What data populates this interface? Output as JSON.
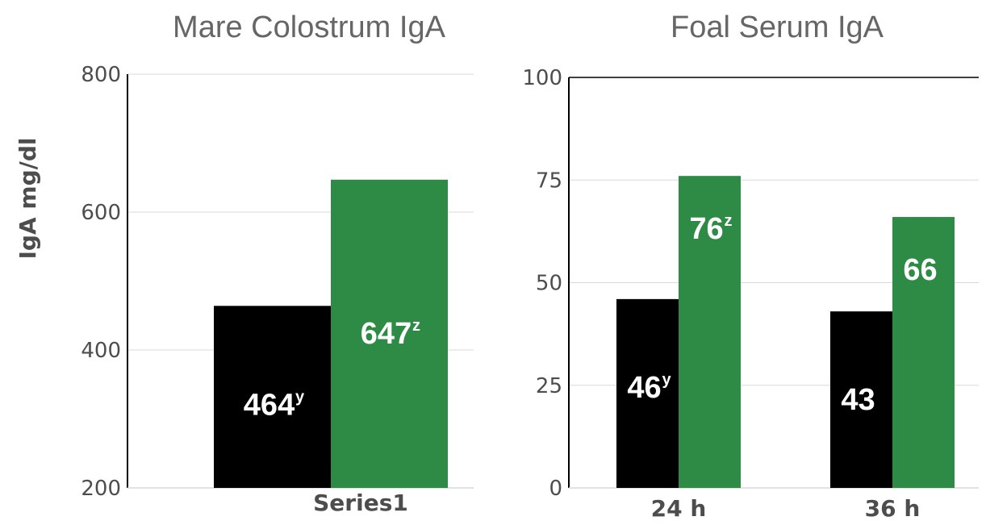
{
  "chart_data": [
    {
      "type": "bar",
      "title": "Mare Colostrum IgA",
      "ylabel": "IgA mg/dl",
      "xlabel": "",
      "categories": [
        "Series1"
      ],
      "ylim": [
        200,
        800
      ],
      "yticks": [
        "200",
        "400",
        "600",
        "800"
      ],
      "grid": true,
      "series": [
        {
          "values": [
            464
          ],
          "labels": [
            "464"
          ],
          "sups": [
            "y"
          ],
          "color": "#000000"
        },
        {
          "values": [
            647
          ],
          "labels": [
            "647"
          ],
          "sups": [
            "z"
          ],
          "color": "#2e8b45"
        }
      ]
    },
    {
      "type": "bar",
      "title": "Foal Serum IgA",
      "ylabel": "",
      "xlabel": "",
      "categories": [
        "24 h",
        "36 h"
      ],
      "ylim": [
        0,
        100
      ],
      "yticks": [
        "0",
        "25",
        "50",
        "75",
        "100"
      ],
      "grid": true,
      "series": [
        {
          "values": [
            46,
            43
          ],
          "labels": [
            "46",
            "43"
          ],
          "sups": [
            "y",
            ""
          ],
          "color": "#000000"
        },
        {
          "values": [
            76,
            66
          ],
          "labels": [
            "76",
            "66"
          ],
          "sups": [
            "z",
            ""
          ],
          "color": "#2e8b45"
        }
      ]
    }
  ]
}
